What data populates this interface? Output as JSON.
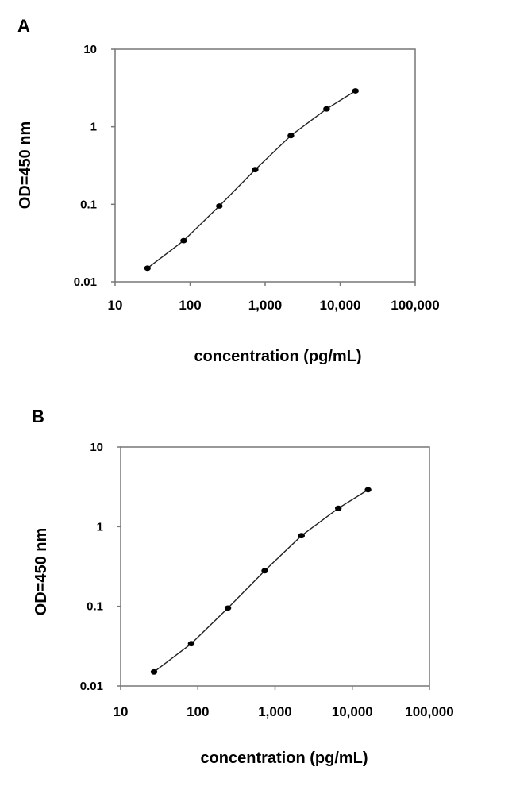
{
  "chart_data": [
    {
      "panel_label": "A",
      "type": "scatter",
      "x_scale": "log",
      "y_scale": "log",
      "xlabel": "concentration (pg/mL)",
      "ylabel": "OD=450 nm",
      "xlim": [
        10,
        100000
      ],
      "ylim": [
        0.01,
        10
      ],
      "x_ticks": [
        10,
        100,
        1000,
        10000,
        100000
      ],
      "x_tick_labels": [
        "10",
        "100",
        "1,000",
        "10,000",
        "100,000"
      ],
      "y_ticks": [
        0.01,
        0.1,
        1,
        10
      ],
      "y_tick_labels": [
        "0.01",
        "0.1",
        "1",
        "10"
      ],
      "grid": false,
      "series": [
        {
          "x": [
            27,
            82,
            245,
            735,
            2200,
            6600,
            16000
          ],
          "y": [
            0.015,
            0.034,
            0.095,
            0.28,
            0.77,
            1.7,
            2.9
          ],
          "markers": true,
          "line": true,
          "color": "#000000"
        }
      ]
    },
    {
      "panel_label": "B",
      "type": "scatter",
      "x_scale": "log",
      "y_scale": "log",
      "xlabel": "concentration (pg/mL)",
      "ylabel": "OD=450 nm",
      "xlim": [
        10,
        100000
      ],
      "ylim": [
        0.01,
        10
      ],
      "x_ticks": [
        10,
        100,
        1000,
        10000,
        100000
      ],
      "x_tick_labels": [
        "10",
        "100",
        "1,000",
        "10,000",
        "100,000"
      ],
      "y_ticks": [
        0.01,
        0.1,
        1,
        10
      ],
      "y_tick_labels": [
        "0.01",
        "0.1",
        "1",
        "10"
      ],
      "grid": false,
      "series": [
        {
          "x": [
            27,
            82,
            245,
            735,
            2200,
            6600,
            16000
          ],
          "y": [
            0.015,
            0.034,
            0.095,
            0.28,
            0.77,
            1.7,
            2.9
          ],
          "markers": true,
          "line": true,
          "color": "#000000"
        }
      ]
    }
  ]
}
